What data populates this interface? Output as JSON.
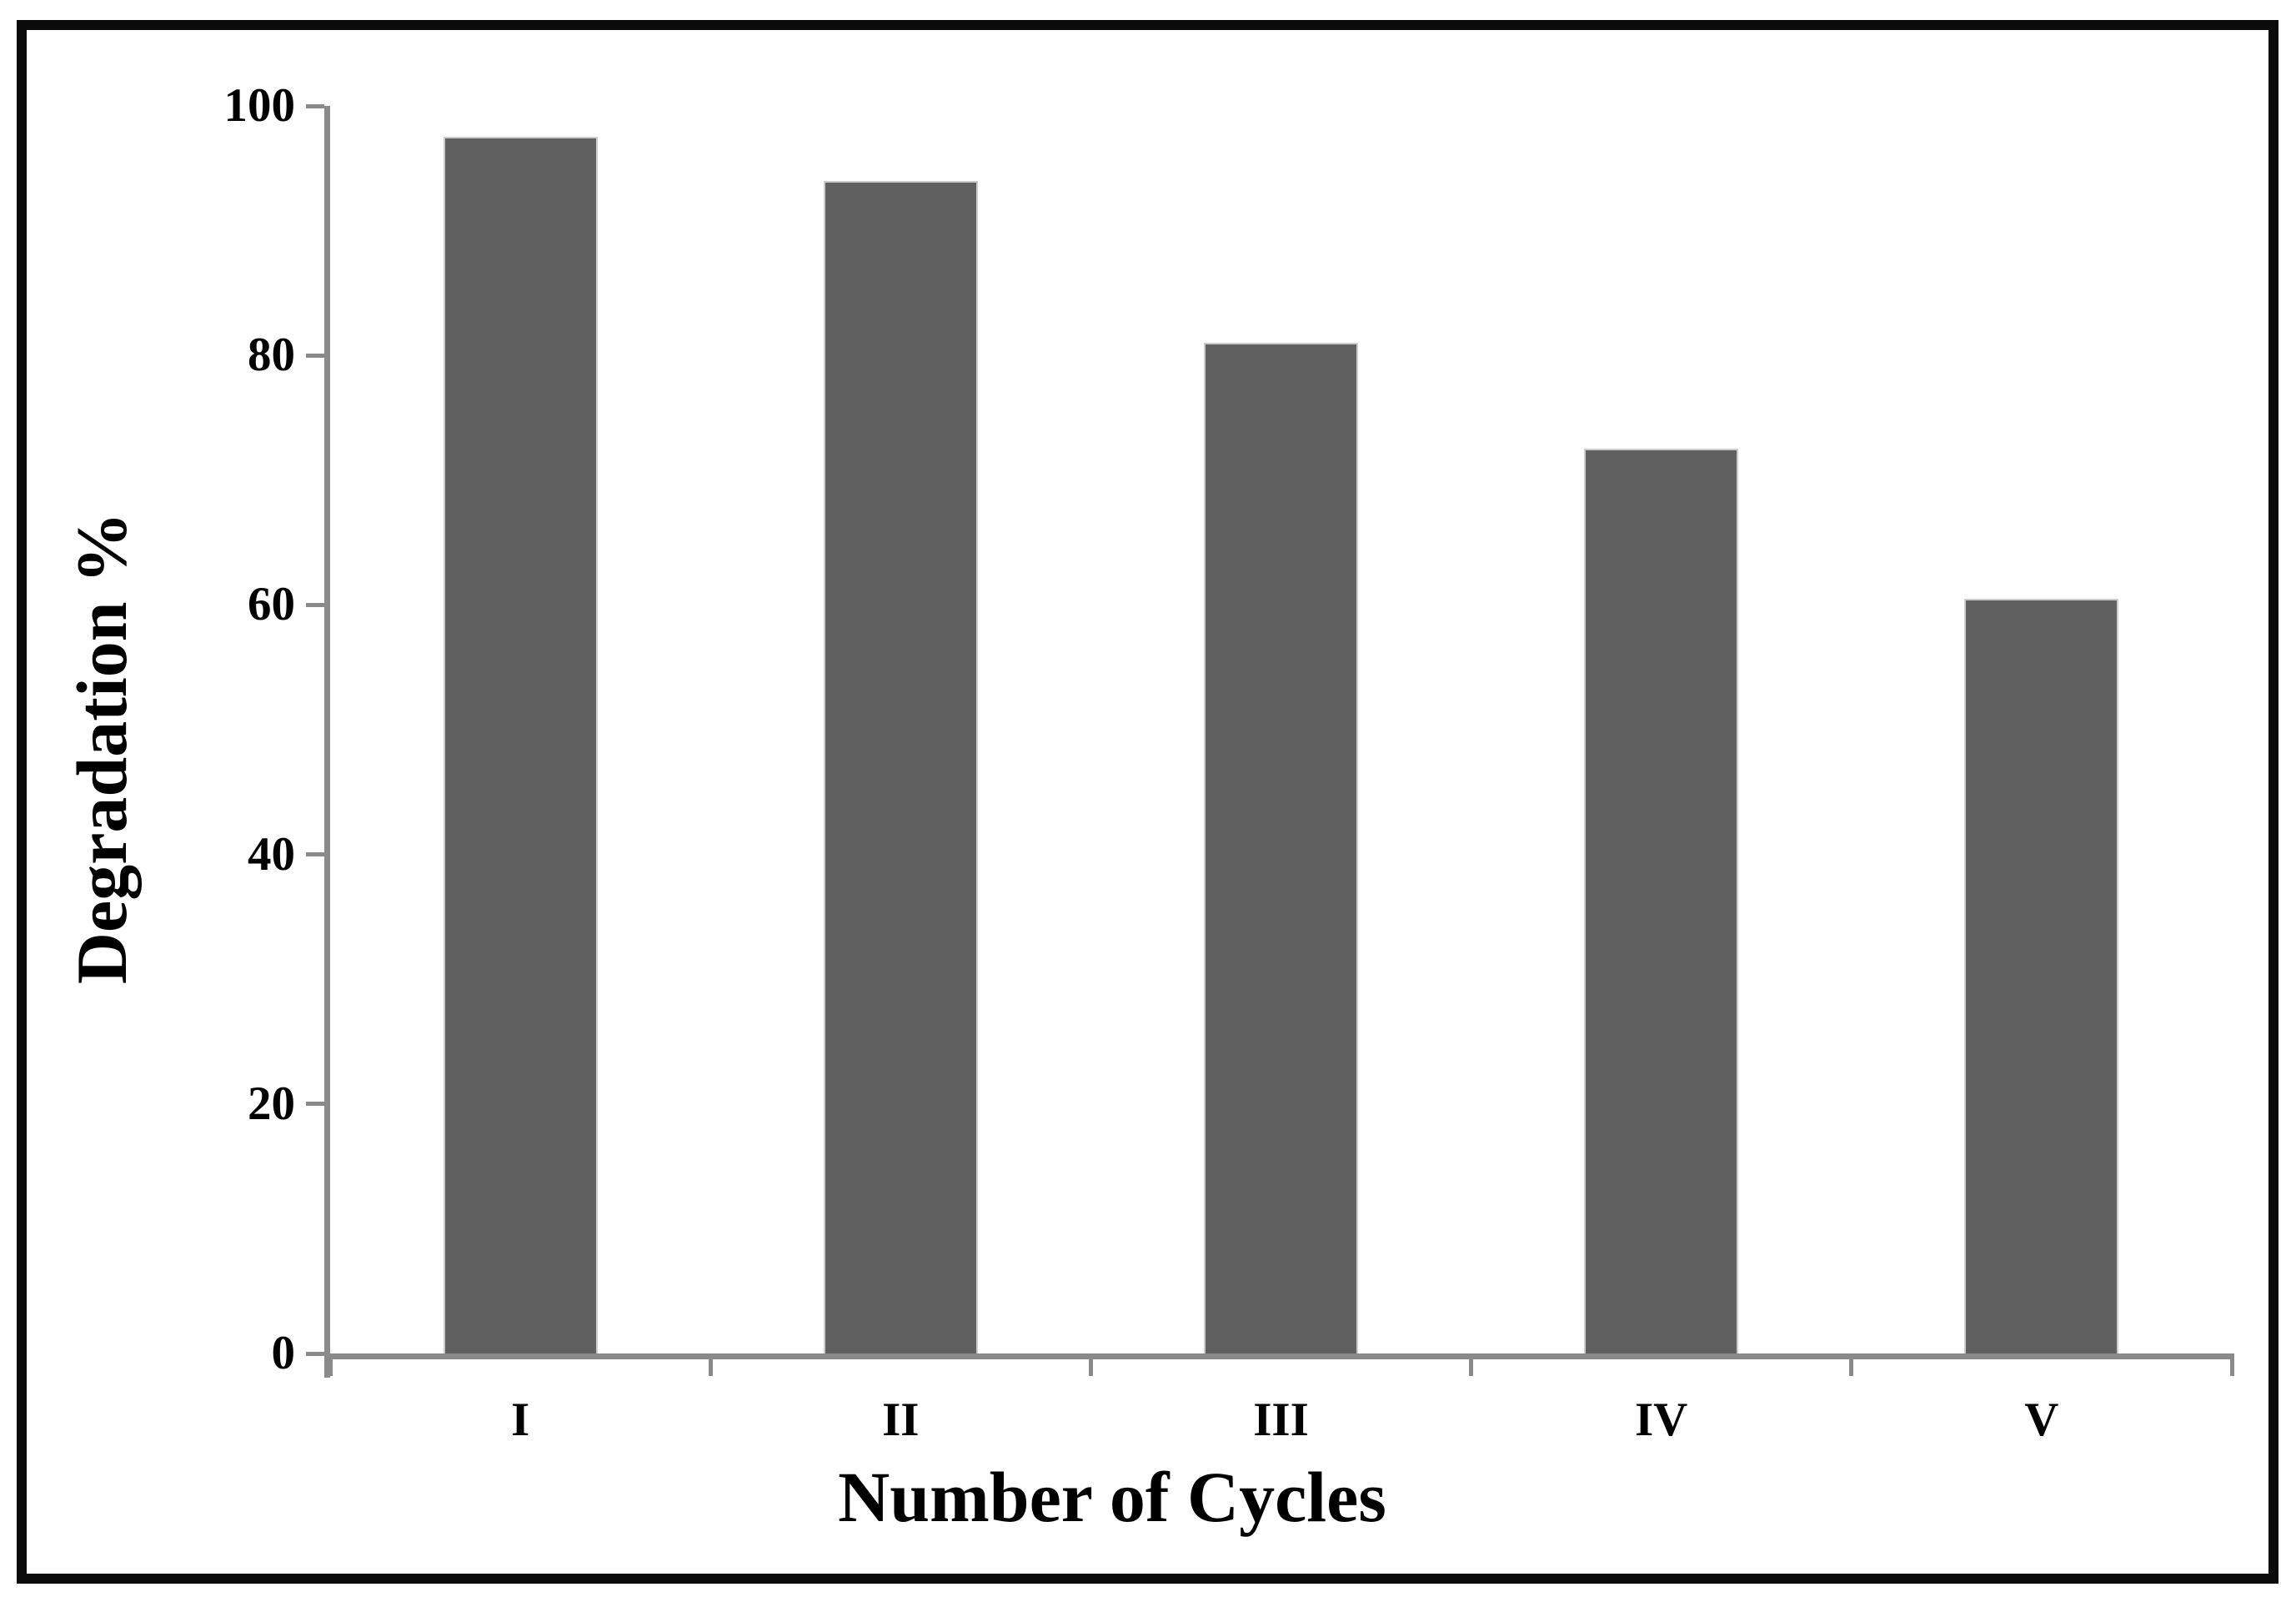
{
  "chart_data": {
    "type": "bar",
    "title": "",
    "xlabel": "Number of Cycles",
    "ylabel": "Degradation %",
    "categories": [
      "I",
      "II",
      "III",
      "IV",
      "V"
    ],
    "values": [
      97.5,
      94,
      81,
      72.5,
      60.5
    ],
    "series": [
      {
        "name": "Degradation %",
        "values": [
          97.5,
          94,
          81,
          72.5,
          60.5
        ]
      }
    ],
    "ylim": [
      0,
      100
    ],
    "yticks": [
      "0",
      "20",
      "40",
      "60",
      "80",
      "100"
    ],
    "grid": false,
    "legend": "none",
    "bar_width_fraction": 0.406,
    "colors": {
      "bar_fill": "#606060",
      "bar_border": "#cccccc",
      "axis_line": "#8a8a8a",
      "text": "#000000",
      "frame_border": "#0b0b0b",
      "background": "#ffffff"
    }
  }
}
